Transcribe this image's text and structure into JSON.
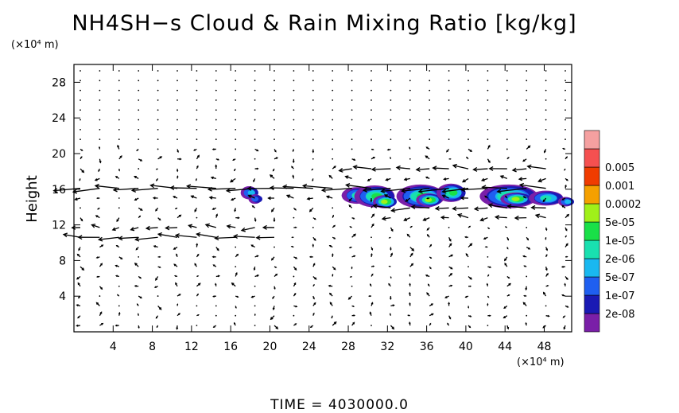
{
  "chart_data": {
    "type": "heatmap",
    "title": "NH4SH−s Cloud & Rain Mixing Ratio [kg/kg]",
    "xunit": "(×10⁴ m)",
    "yunit": "(×10⁴ m)",
    "ylabel": "Height",
    "xlim": [
      0,
      50.8
    ],
    "ylim": [
      0,
      30
    ],
    "xticks": [
      4,
      8,
      12,
      16,
      20,
      24,
      28,
      32,
      36,
      40,
      44,
      48
    ],
    "yticks": [
      4,
      8,
      12,
      16,
      20,
      24,
      28
    ],
    "time_label": "TIME  =  4030000.0",
    "colorbar": {
      "levels": [
        "2e-08",
        "1e-07",
        "5e-07",
        "2e-06",
        "1e-05",
        "5e-05",
        "0.0002",
        "0.001",
        "0.005"
      ],
      "colors": [
        "#7a1fa8",
        "#1a1ab4",
        "#1f5ff0",
        "#19b8f0",
        "#19e0b0",
        "#19e048",
        "#a0f019",
        "#f5a000",
        "#f03c00",
        "#f55050",
        "#f5a0a0"
      ]
    },
    "cloud_regions": [
      {
        "x": 18.0,
        "y": 15.6,
        "rx": 0.7,
        "ry": 0.6,
        "level": 3
      },
      {
        "x": 18.6,
        "y": 14.9,
        "rx": 0.5,
        "ry": 0.4,
        "level": 2
      },
      {
        "x": 29.0,
        "y": 15.3,
        "rx": 1.4,
        "ry": 0.8,
        "level": 4
      },
      {
        "x": 30.8,
        "y": 15.2,
        "rx": 1.9,
        "ry": 1.1,
        "level": 5
      },
      {
        "x": 31.8,
        "y": 14.6,
        "rx": 1.0,
        "ry": 0.6,
        "level": 6
      },
      {
        "x": 35.5,
        "y": 15.2,
        "rx": 2.3,
        "ry": 1.2,
        "level": 5
      },
      {
        "x": 36.3,
        "y": 14.8,
        "rx": 1.1,
        "ry": 0.6,
        "level": 6
      },
      {
        "x": 38.6,
        "y": 15.6,
        "rx": 1.3,
        "ry": 0.9,
        "level": 5
      },
      {
        "x": 44.5,
        "y": 15.2,
        "rx": 2.8,
        "ry": 1.2,
        "level": 5
      },
      {
        "x": 45.2,
        "y": 14.9,
        "rx": 1.4,
        "ry": 0.6,
        "level": 6
      },
      {
        "x": 48.3,
        "y": 15.0,
        "rx": 1.6,
        "ry": 0.7,
        "level": 4
      },
      {
        "x": 50.3,
        "y": 14.6,
        "rx": 0.6,
        "ry": 0.4,
        "level": 3
      }
    ],
    "wind_layers": [
      {
        "y": 11.0,
        "u": -1.0,
        "x_range": [
          0,
          22
        ]
      },
      {
        "y": 16.0,
        "u": -1.0,
        "x_range": [
          0,
          50
        ]
      },
      {
        "y": 18.0,
        "u": -0.7,
        "x_range": [
          28,
          50
        ]
      },
      {
        "y": 13.5,
        "u": -0.8,
        "x_range": [
          32,
          50
        ]
      }
    ]
  }
}
